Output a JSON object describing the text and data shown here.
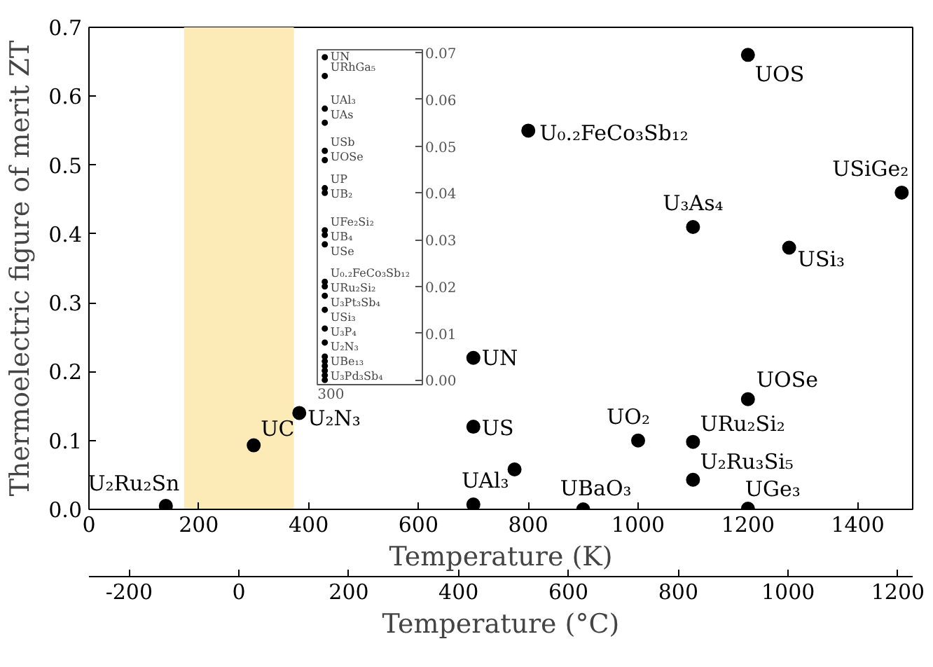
{
  "chart_data": [
    {
      "type": "scatter",
      "xlabel": "Temperature (K)",
      "x2label": "Temperature (°C)",
      "ylabel": "Thermoelectric figure of merit ZT",
      "series": [
        {
          "color": "#000000",
          "x": [
            140,
            300,
            383,
            700,
            700,
            700,
            775,
            900,
            1000,
            1100,
            1100,
            1200,
            1200,
            1275,
            1100,
            1480,
            800,
            1200
          ],
          "values": [
            0.005,
            0.093,
            0.14,
            0.22,
            0.12,
            0.007,
            0.058,
            0.0,
            0.1,
            0.098,
            0.043,
            0.001,
            0.16,
            0.38,
            0.41,
            0.46,
            0.55,
            0.66
          ]
        }
      ],
      "marker": "circle",
      "xlim": [
        0,
        1500
      ],
      "xticks": [
        0,
        200,
        400,
        600,
        800,
        1000,
        1200,
        1400
      ],
      "x2lim": [
        -273.15,
        1226.85
      ],
      "x2ticks": [
        -200,
        0,
        200,
        400,
        600,
        800,
        1000,
        1200
      ],
      "ylim": [
        0,
        0.7
      ],
      "yticks": [
        {
          "value": 0,
          "label": "0.0"
        },
        0.1,
        0.2,
        0.3,
        0.4,
        0.5,
        0.6,
        0.7
      ],
      "bands": [
        {
          "axis": "x",
          "from": 173.15,
          "to": 373.15,
          "color": "#fcebb6"
        }
      ],
      "annotations": [
        {
          "text": "U₂Ru₂Sn",
          "x": 140,
          "y": 0.005
        },
        {
          "text": "UC",
          "x": 300,
          "y": 0.093
        },
        {
          "text": "U₂N₃",
          "x": 383,
          "y": 0.14
        },
        {
          "text": "UN",
          "x": 700,
          "y": 0.22
        },
        {
          "text": "US",
          "x": 700,
          "y": 0.12
        },
        {
          "text": "UAl₃",
          "x": 775,
          "y": 0.058
        },
        {
          "text": "UBaO₃",
          "x": 900,
          "y": 0.0
        },
        {
          "text": "UO₂",
          "x": 1000,
          "y": 0.1
        },
        {
          "text": "URu₂Si₂",
          "x": 1100,
          "y": 0.098
        },
        {
          "text": "U₂Ru₃Si₅",
          "x": 1100,
          "y": 0.043
        },
        {
          "text": "UGe₃",
          "x": 1200,
          "y": 0.001
        },
        {
          "text": "UOSe",
          "x": 1200,
          "y": 0.16
        },
        {
          "text": "USi₃",
          "x": 1275,
          "y": 0.38
        },
        {
          "text": "U₃As₄",
          "x": 1100,
          "y": 0.41
        },
        {
          "text": "USiGe₂",
          "x": 1480,
          "y": 0.46
        },
        {
          "text": "U₀.₂FeCo₃Sb₁₂",
          "x": 800,
          "y": 0.55
        },
        {
          "text": "UOS",
          "x": 1200,
          "y": 0.66
        }
      ]
    },
    {
      "type": "scatter",
      "categories": [
        "300"
      ],
      "series": [
        {
          "color": "#000000",
          "x": [
            "300",
            "300",
            "300",
            "300",
            "300",
            "300",
            "300",
            "300",
            "300",
            "300",
            "300",
            "300",
            "300",
            "300",
            "300",
            "300",
            "300",
            "300",
            "300",
            "300",
            "300",
            "300",
            "300"
          ],
          "values": [
            0.069,
            0.065,
            0.058,
            0.055,
            0.049,
            0.047,
            0.041,
            0.04,
            0.032,
            0.031,
            0.029,
            0.021,
            0.02,
            0.018,
            0.015,
            0.011,
            0.008,
            0.005,
            0.004,
            0.003,
            0.002,
            0.001,
            0.0
          ]
        }
      ],
      "marker": "circle",
      "ylim": [
        -0.001,
        0.0706
      ],
      "yticks": [
        {
          "value": 0,
          "label": "0.00"
        },
        0.01,
        0.02,
        0.03,
        0.04,
        0.05,
        0.06,
        0.07
      ],
      "annotations": [
        {
          "text": "UN",
          "x": "300",
          "y": 0.069
        },
        {
          "text": "URhGa₅",
          "x": "300",
          "y": 0.065
        },
        {
          "text": "UAl₃",
          "x": "300",
          "y": 0.058
        },
        {
          "text": "UAs",
          "x": "300",
          "y": 0.055
        },
        {
          "text": "USb",
          "x": "300",
          "y": 0.049
        },
        {
          "text": "UOSe",
          "x": "300",
          "y": 0.047
        },
        {
          "text": "UP",
          "x": "300",
          "y": 0.041
        },
        {
          "text": "UB₂",
          "x": "300",
          "y": 0.04
        },
        {
          "text": "UFe₂Si₂",
          "x": "300",
          "y": 0.032
        },
        {
          "text": "UB₄",
          "x": "300",
          "y": 0.031
        },
        {
          "text": "USe",
          "x": "300",
          "y": 0.029
        },
        {
          "text": "U₀.₂FeCo₃Sb₁₂",
          "x": "300",
          "y": 0.021
        },
        {
          "text": "URu₂Si₂",
          "x": "300",
          "y": 0.02
        },
        {
          "text": "U₃Pt₃Sb₄",
          "x": "300",
          "y": 0.018
        },
        {
          "text": "USi₃",
          "x": "300",
          "y": 0.015
        },
        {
          "text": "U₃P₄",
          "x": "300",
          "y": 0.011
        },
        {
          "text": "U₂N₃",
          "x": "300",
          "y": 0.008
        },
        {
          "text": "UBe₁₃",
          "x": "300",
          "y": 0.005
        },
        {
          "text": "U₃Pd₃Sb₄",
          "x": "300",
          "y": 0.002
        }
      ]
    }
  ]
}
